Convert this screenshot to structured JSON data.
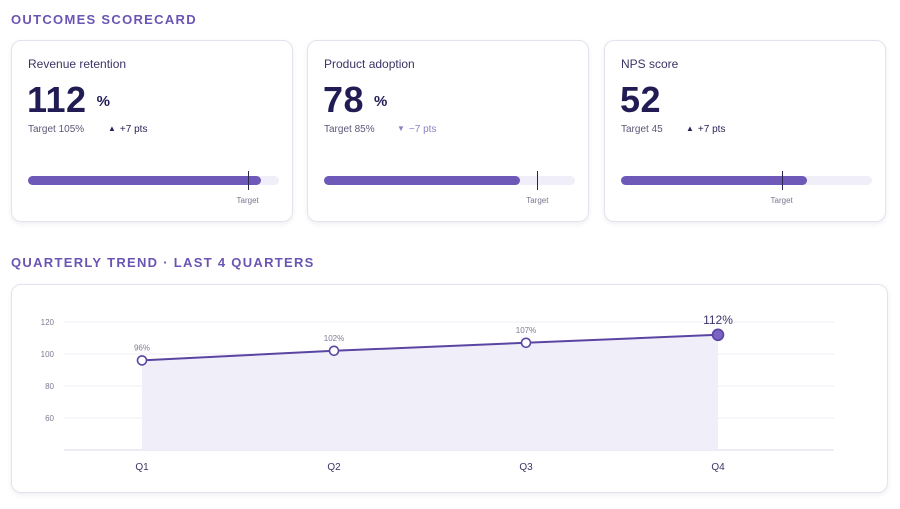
{
  "sections": {
    "scorecard_title": "OUTCOMES SCORECARD",
    "trend_title": "QUARTERLY TREND · LAST 4 QUARTERS"
  },
  "cards": [
    {
      "label": "Revenue retention",
      "value": "112",
      "unit": "%",
      "target_text": "Target 105%",
      "delta_text": "+7 pts",
      "delta_icon": "▲",
      "delta_direction": "up",
      "progress_fill_fraction": 0.93,
      "target_marker_fraction": 0.875,
      "marker_label": "Target"
    },
    {
      "label": "Product adoption",
      "value": "78",
      "unit": "%",
      "target_text": "Target 85%",
      "delta_text": "−7 pts",
      "delta_icon": "▼",
      "delta_direction": "down",
      "progress_fill_fraction": 0.78,
      "target_marker_fraction": 0.85,
      "marker_label": "Target"
    },
    {
      "label": "NPS score",
      "value": "52",
      "unit": "",
      "target_text": "Target 45",
      "delta_text": "+7 pts",
      "delta_icon": "▲",
      "delta_direction": "up",
      "progress_fill_fraction": 0.74,
      "target_marker_fraction": 0.64,
      "marker_label": "Target"
    }
  ],
  "colors": {
    "accent": "#6f59b8",
    "accent_dark": "#5a45a3",
    "area_fill": "#f0eef9",
    "text_dark": "#221c55"
  },
  "chart_data": {
    "type": "area",
    "title": "QUARTERLY TREND · LAST 4 QUARTERS",
    "categories": [
      "Q1",
      "Q2",
      "Q3",
      "Q4"
    ],
    "series": [
      {
        "name": "Revenue retention",
        "values": [
          96,
          102,
          107,
          112
        ]
      }
    ],
    "data_labels": [
      "96%",
      "102%",
      "107%",
      "112%"
    ],
    "ylim": [
      40,
      120
    ],
    "yticks": [
      60,
      80,
      100,
      120
    ],
    "grid": true,
    "xlabel": "",
    "ylabel": ""
  }
}
